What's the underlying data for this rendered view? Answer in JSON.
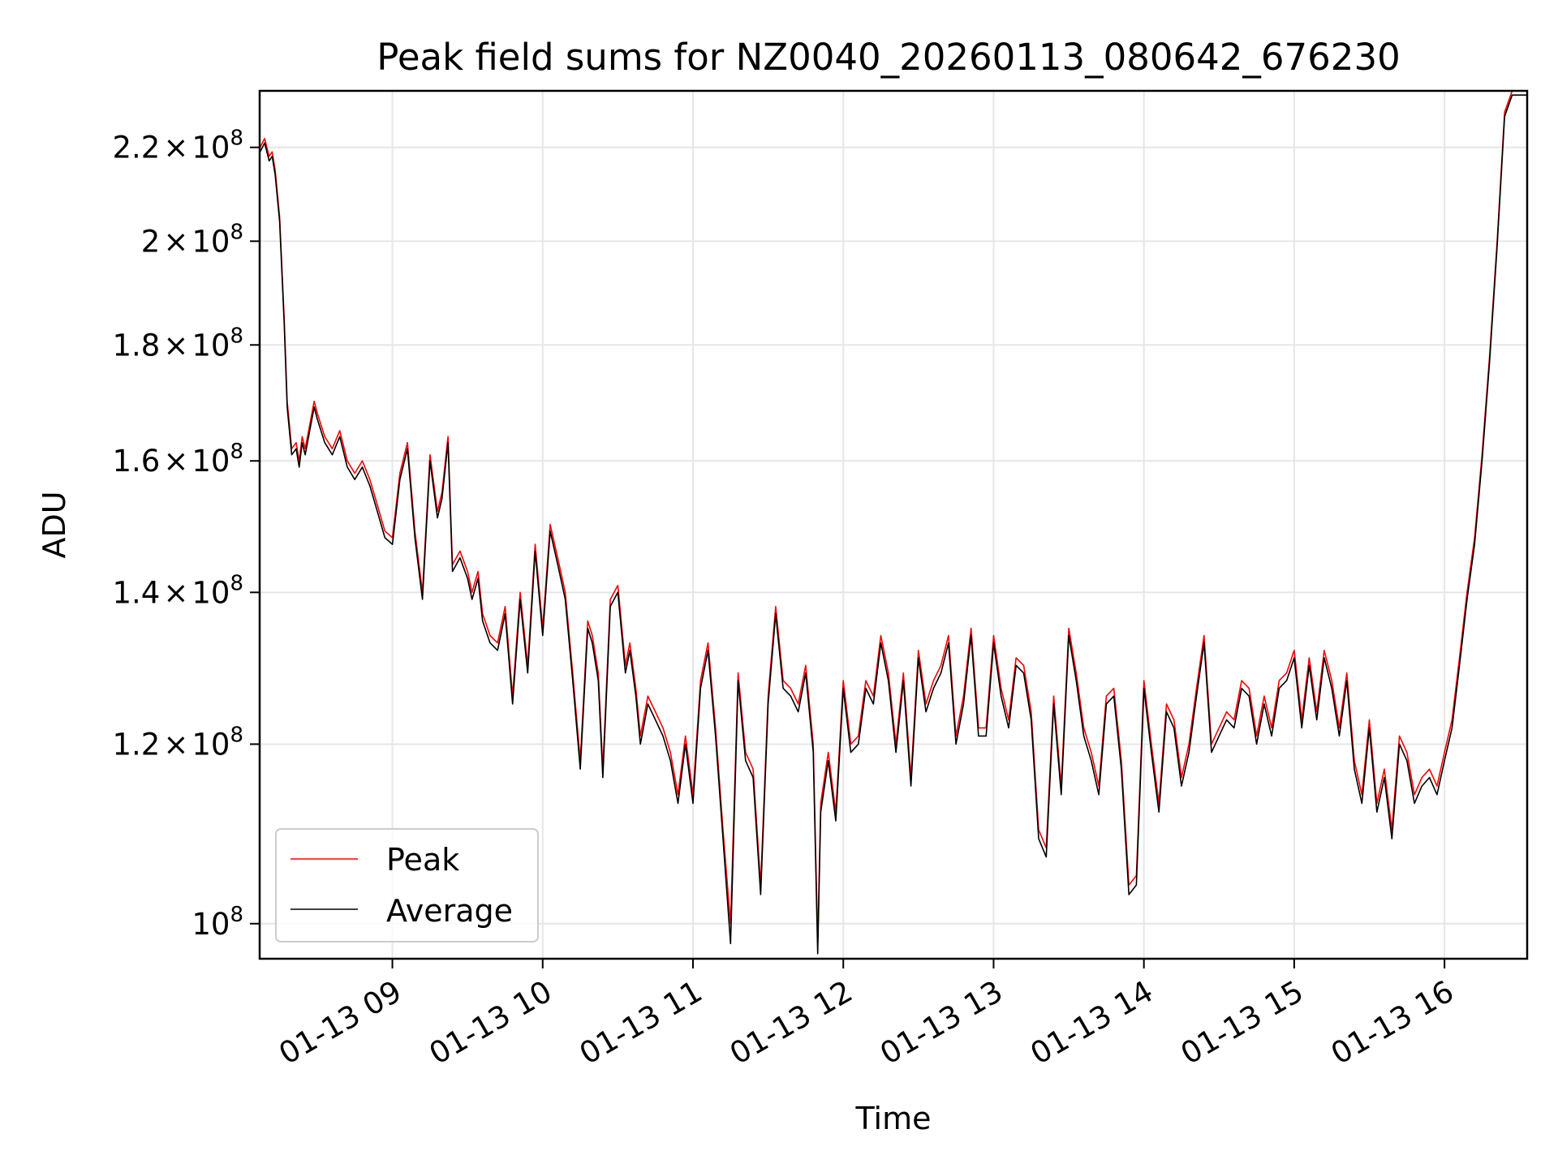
{
  "chart_data": {
    "type": "line",
    "title": "Peak field sums for NZ0040_20260113_080642_676230",
    "xlabel": "Time",
    "ylabel": "ADU",
    "yscale": "log",
    "grid": true,
    "legend_position": "lower-left",
    "xlim": [
      8.117,
      16.55
    ],
    "ylim": [
      96500000,
      233000000
    ],
    "xticks": [
      {
        "value": 9,
        "label": "01-13 09"
      },
      {
        "value": 10,
        "label": "01-13 10"
      },
      {
        "value": 11,
        "label": "01-13 11"
      },
      {
        "value": 12,
        "label": "01-13 12"
      },
      {
        "value": 13,
        "label": "01-13 13"
      },
      {
        "value": 14,
        "label": "01-13 14"
      },
      {
        "value": 15,
        "label": "01-13 15"
      },
      {
        "value": 16,
        "label": "01-13 16"
      }
    ],
    "yticks": [
      {
        "value": 100000000,
        "mant": "",
        "exp": "8"
      },
      {
        "value": 120000000,
        "mant": "1.2",
        "exp": "8"
      },
      {
        "value": 140000000,
        "mant": "1.4",
        "exp": "8"
      },
      {
        "value": 160000000,
        "mant": "1.6",
        "exp": "8"
      },
      {
        "value": 180000000,
        "mant": "1.8",
        "exp": "8"
      },
      {
        "value": 200000000,
        "mant": "2",
        "exp": "8"
      },
      {
        "value": 220000000,
        "mant": "2.2",
        "exp": "8"
      }
    ],
    "x_unit": "hours (2026-01-13 UTC)",
    "y_unit": "ADU ×1e6",
    "x": [
      8.12,
      8.15,
      8.18,
      8.2,
      8.22,
      8.25,
      8.28,
      8.3,
      8.33,
      8.36,
      8.38,
      8.4,
      8.42,
      8.45,
      8.48,
      8.5,
      8.55,
      8.6,
      8.65,
      8.7,
      8.75,
      8.8,
      8.85,
      8.9,
      8.95,
      9.0,
      9.05,
      9.1,
      9.15,
      9.2,
      9.25,
      9.3,
      9.33,
      9.37,
      9.4,
      9.45,
      9.5,
      9.53,
      9.57,
      9.6,
      9.65,
      9.7,
      9.75,
      9.8,
      9.85,
      9.9,
      9.95,
      10.0,
      10.05,
      10.1,
      10.15,
      10.2,
      10.25,
      10.3,
      10.33,
      10.37,
      10.4,
      10.45,
      10.5,
      10.55,
      10.58,
      10.62,
      10.65,
      10.7,
      10.75,
      10.8,
      10.85,
      10.9,
      10.95,
      11.0,
      11.05,
      11.1,
      11.15,
      11.2,
      11.25,
      11.3,
      11.35,
      11.4,
      11.45,
      11.5,
      11.55,
      11.6,
      11.65,
      11.7,
      11.75,
      11.8,
      11.83,
      11.85,
      11.9,
      11.95,
      12.0,
      12.05,
      12.1,
      12.15,
      12.2,
      12.25,
      12.3,
      12.35,
      12.4,
      12.45,
      12.5,
      12.55,
      12.6,
      12.65,
      12.7,
      12.75,
      12.8,
      12.85,
      12.9,
      12.95,
      13.0,
      13.05,
      13.1,
      13.15,
      13.2,
      13.25,
      13.3,
      13.35,
      13.4,
      13.45,
      13.5,
      13.55,
      13.6,
      13.65,
      13.7,
      13.75,
      13.8,
      13.85,
      13.9,
      13.95,
      14.0,
      14.05,
      14.1,
      14.15,
      14.2,
      14.25,
      14.3,
      14.35,
      14.4,
      14.45,
      14.5,
      14.55,
      14.6,
      14.65,
      14.7,
      14.75,
      14.8,
      14.85,
      14.9,
      14.95,
      15.0,
      15.05,
      15.1,
      15.15,
      15.2,
      15.25,
      15.3,
      15.35,
      15.4,
      15.45,
      15.5,
      15.55,
      15.6,
      15.65,
      15.7,
      15.75,
      15.8,
      15.85,
      15.9,
      15.95,
      16.0,
      16.05,
      16.1,
      16.15,
      16.2,
      16.25,
      16.3,
      16.35,
      16.4,
      16.45,
      16.5,
      16.55
    ],
    "series": [
      {
        "name": "Peak",
        "color": "#ff0000",
        "values": [
          220,
          222,
          218,
          219,
          215,
          205,
          185,
          170,
          162,
          163,
          160,
          164,
          162,
          166,
          170,
          168,
          164,
          162,
          165,
          160,
          158,
          160,
          157,
          153,
          149,
          148,
          158,
          163,
          149,
          140,
          161,
          152,
          155,
          164,
          144,
          146,
          143,
          140,
          143,
          137,
          134,
          133,
          138,
          126,
          140,
          130,
          147,
          135,
          150,
          145,
          140,
          129,
          118,
          136,
          134,
          129,
          117,
          139,
          141,
          130,
          133,
          127,
          121,
          126,
          124,
          122,
          119,
          114,
          121,
          114,
          128,
          133,
          122,
          110,
          100,
          129,
          119,
          117,
          104,
          126,
          138,
          128,
          127,
          125,
          130,
          120,
          98,
          113,
          119,
          112,
          128,
          120,
          121,
          128,
          126,
          134,
          129,
          120,
          129,
          116,
          132,
          125,
          128,
          130,
          134,
          121,
          126,
          135,
          122,
          122,
          134,
          127,
          123,
          131,
          130,
          124,
          110,
          108,
          126,
          115,
          135,
          129,
          122,
          119,
          115,
          126,
          127,
          118,
          104,
          105,
          128,
          120,
          113,
          125,
          123,
          116,
          120,
          127,
          134,
          120,
          122,
          124,
          123,
          128,
          127,
          121,
          126,
          122,
          128,
          129,
          132,
          123,
          131,
          124,
          132,
          128,
          122,
          129,
          118,
          114,
          123,
          113,
          117,
          110,
          121,
          119,
          114,
          116,
          117,
          115,
          119,
          123,
          131,
          140,
          148,
          161,
          178,
          200,
          228,
          233,
          233,
          233
        ]
      },
      {
        "name": "Average",
        "color": "#000000",
        "values": [
          219,
          221,
          217,
          218,
          214,
          204,
          184,
          169,
          161,
          162,
          159,
          163,
          161,
          165,
          169,
          167,
          163,
          161,
          164,
          159,
          157,
          159,
          156,
          152,
          148,
          147,
          157,
          162,
          148,
          139,
          160,
          151,
          154,
          163,
          143,
          145,
          142,
          139,
          142,
          136,
          133,
          132,
          137,
          125,
          139,
          129,
          146,
          134,
          149,
          144,
          139,
          128,
          117,
          135,
          133,
          128,
          116,
          138,
          140,
          129,
          132,
          126,
          120,
          125,
          123,
          121,
          118,
          113,
          120,
          113,
          127,
          132,
          121,
          109,
          98,
          128,
          118,
          116,
          103,
          125,
          137,
          127,
          126,
          124,
          129,
          119,
          97,
          112,
          118,
          111,
          127,
          119,
          120,
          127,
          125,
          133,
          128,
          119,
          128,
          115,
          131,
          124,
          127,
          129,
          133,
          120,
          125,
          134,
          121,
          121,
          133,
          126,
          122,
          130,
          129,
          123,
          109,
          107,
          125,
          114,
          134,
          128,
          121,
          118,
          114,
          125,
          126,
          117,
          103,
          104,
          127,
          119,
          112,
          124,
          122,
          115,
          119,
          126,
          133,
          119,
          121,
          123,
          122,
          127,
          126,
          120,
          125,
          121,
          127,
          128,
          131,
          122,
          130,
          123,
          131,
          127,
          121,
          128,
          117,
          113,
          122,
          112,
          116,
          109,
          120,
          118,
          113,
          115,
          116,
          114,
          118,
          122,
          130,
          139,
          147,
          160,
          177,
          199,
          227,
          232,
          232,
          232
        ]
      }
    ]
  }
}
